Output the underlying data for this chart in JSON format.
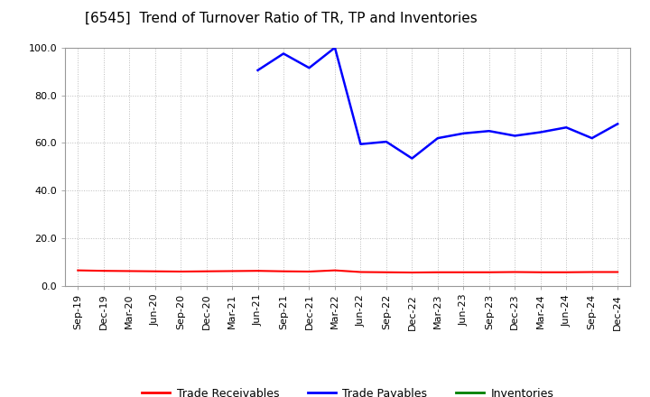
{
  "title": "[6545]  Trend of Turnover Ratio of TR, TP and Inventories",
  "ylim": [
    0.0,
    100.0
  ],
  "yticks": [
    0.0,
    20.0,
    40.0,
    60.0,
    80.0,
    100.0
  ],
  "x_labels": [
    "Sep-19",
    "Dec-19",
    "Mar-20",
    "Jun-20",
    "Sep-20",
    "Dec-20",
    "Mar-21",
    "Jun-21",
    "Sep-21",
    "Dec-21",
    "Mar-22",
    "Jun-22",
    "Sep-22",
    "Dec-22",
    "Mar-23",
    "Jun-23",
    "Sep-23",
    "Dec-23",
    "Mar-24",
    "Jun-24",
    "Sep-24",
    "Dec-24"
  ],
  "trade_receivables": [
    6.5,
    6.3,
    6.2,
    6.1,
    6.0,
    6.1,
    6.2,
    6.3,
    6.1,
    6.0,
    6.5,
    5.8,
    5.7,
    5.6,
    5.7,
    5.7,
    5.7,
    5.8,
    5.7,
    5.7,
    5.8,
    5.8
  ],
  "trade_payables": [
    null,
    null,
    null,
    null,
    null,
    null,
    null,
    90.5,
    97.5,
    91.5,
    100.0,
    59.5,
    60.5,
    53.5,
    62.0,
    64.0,
    65.0,
    63.0,
    64.5,
    66.5,
    62.0,
    68.0
  ],
  "inventories": [
    null,
    null,
    null,
    null,
    null,
    null,
    null,
    null,
    null,
    null,
    null,
    null,
    null,
    null,
    null,
    null,
    null,
    null,
    null,
    null,
    null,
    null
  ],
  "tr_color": "#ff0000",
  "tp_color": "#0000ff",
  "inv_color": "#008000",
  "background_color": "#ffffff",
  "grid_color": "#bbbbbb",
  "title_fontsize": 11,
  "tick_fontsize": 8,
  "legend_labels": [
    "Trade Receivables",
    "Trade Payables",
    "Inventories"
  ],
  "legend_fontsize": 9
}
